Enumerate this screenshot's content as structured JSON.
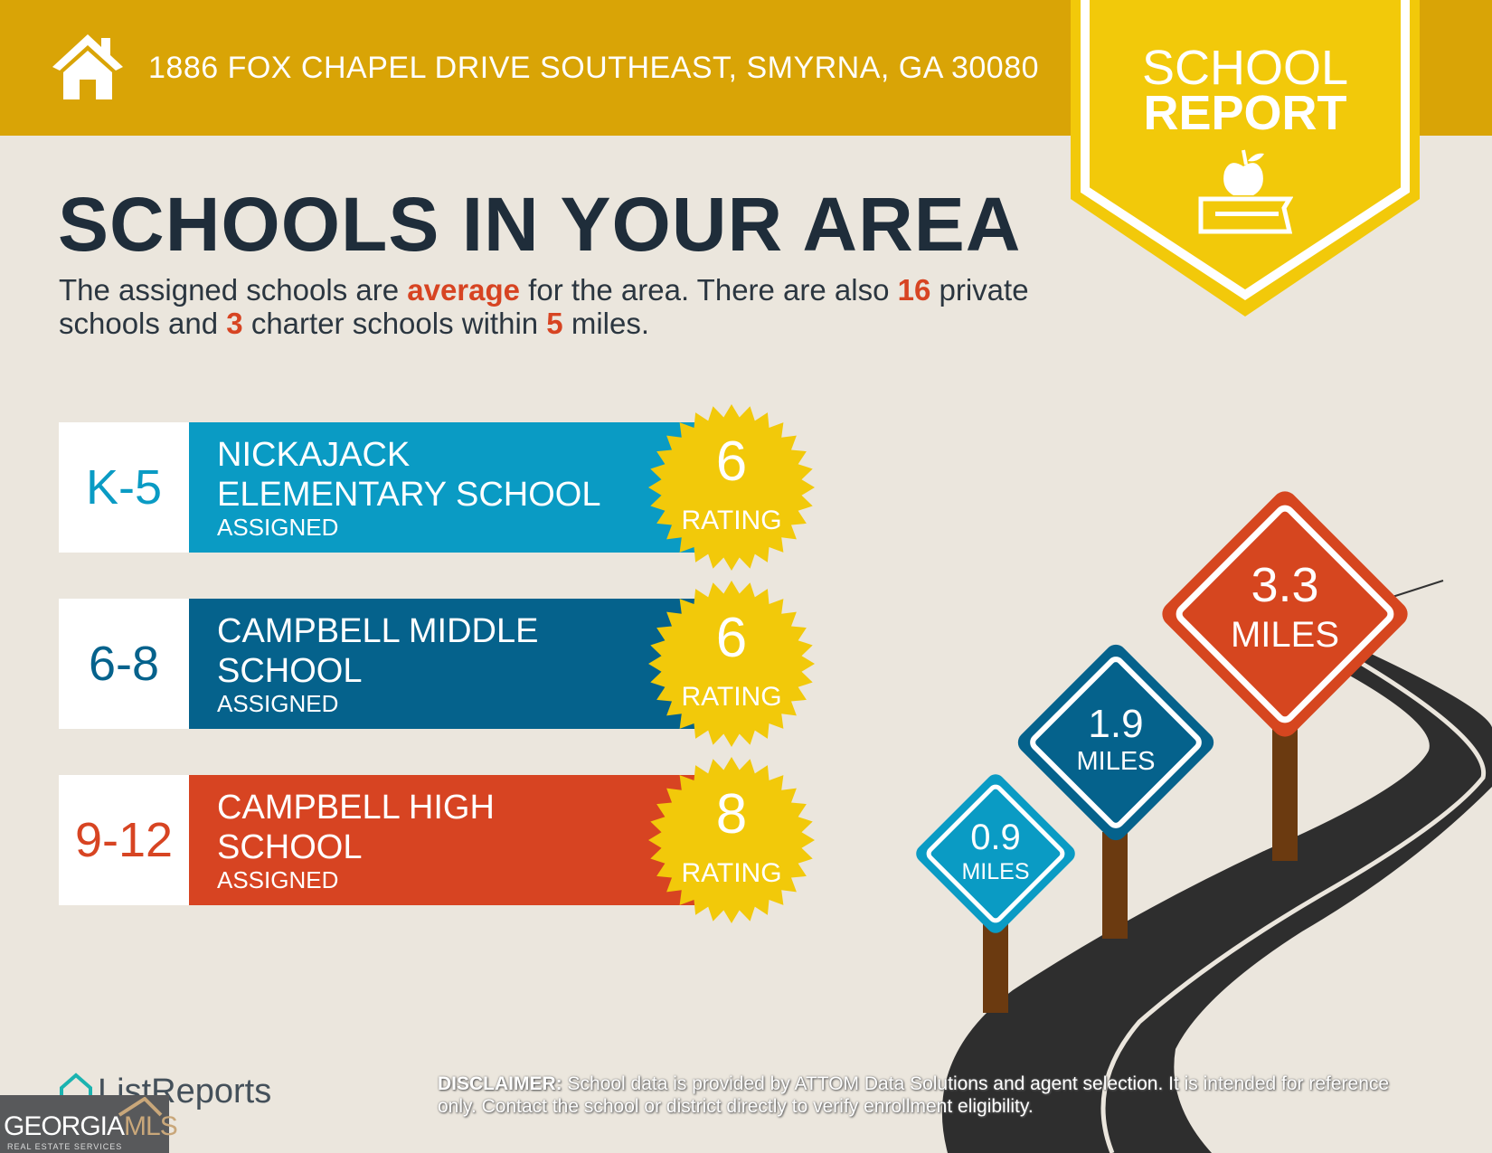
{
  "header": {
    "address": "1886 FOX CHAPEL DRIVE SOUTHEAST, SMYRNA, GA 30080",
    "icon": "home-icon"
  },
  "banner": {
    "line1": "SCHOOL",
    "line2": "REPORT",
    "icon": "apple-book-icon"
  },
  "title": "SCHOOLS IN YOUR AREA",
  "summary": {
    "p1": "The assigned schools are ",
    "quality": "average",
    "p2": " for the area. There are also ",
    "private": "16",
    "p3": " private schools and ",
    "charter": "3",
    "p4": " charter schools within ",
    "miles": "5",
    "p5": " miles."
  },
  "schools": [
    {
      "grades": "K-5",
      "name": "NICKAJACK ELEMENTARY SCHOOL",
      "status": "ASSIGNED",
      "rating": "6",
      "rating_label": "RATING",
      "color": "#0A9BC4",
      "distance": "0.9",
      "distance_unit": "MILES"
    },
    {
      "grades": "6-8",
      "name": "CAMPBELL MIDDLE SCHOOL",
      "status": "ASSIGNED",
      "rating": "6",
      "rating_label": "RATING",
      "color": "#05628C",
      "distance": "1.9",
      "distance_unit": "MILES"
    },
    {
      "grades": "9-12",
      "name": "CAMPBELL HIGH SCHOOL",
      "status": "ASSIGNED",
      "rating": "8",
      "rating_label": "RATING",
      "color": "#D74422",
      "distance": "3.3",
      "distance_unit": "MILES"
    }
  ],
  "footer": {
    "brand": "ListReports",
    "mls_a": "GEORGIA",
    "mls_b": "MLS",
    "mls_sub": "REAL ESTATE SERVICES",
    "disclaimer_label": "DISCLAIMER:",
    "disclaimer": " School data is provided by ATTOM Data Solutions and agent selection. It is intended for reference only. Contact the school or district directly to verify enrollment eligibility."
  }
}
